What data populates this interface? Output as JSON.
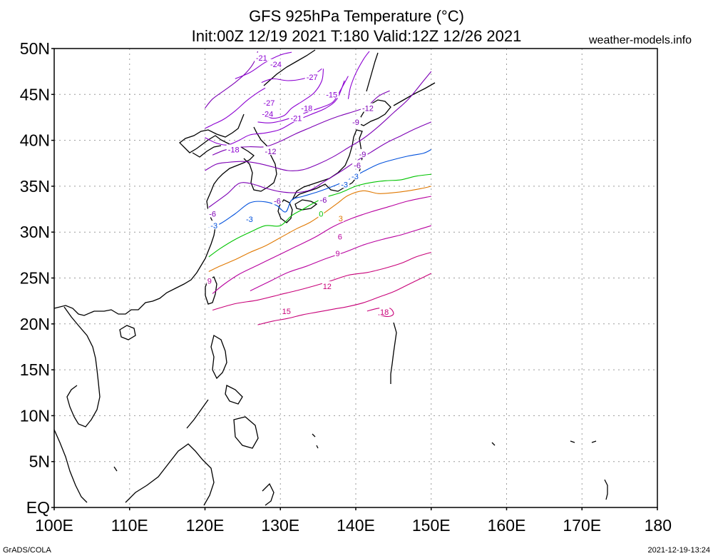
{
  "title": {
    "line1": "GFS 925hPa Temperature (°C)",
    "line2": "Init:00Z 12/19 2021 T:180 Valid:12Z 12/26 2021"
  },
  "site": "weather-models.info",
  "footer": {
    "left": "GrADS/COLA",
    "right": "2021-12-19-13:24"
  },
  "map": {
    "lon_range": [
      100,
      180
    ],
    "lat_range": [
      0,
      50
    ],
    "data_region": {
      "lon": [
        120,
        150
      ],
      "lat": [
        20,
        50
      ]
    },
    "gridlines": "dotted",
    "lat_ticks": [
      {
        "lat": 50,
        "label": "50N"
      },
      {
        "lat": 45,
        "label": "45N"
      },
      {
        "lat": 40,
        "label": "40N"
      },
      {
        "lat": 35,
        "label": "35N"
      },
      {
        "lat": 30,
        "label": "30N"
      },
      {
        "lat": 25,
        "label": "25N"
      },
      {
        "lat": 20,
        "label": "20N"
      },
      {
        "lat": 15,
        "label": "15N"
      },
      {
        "lat": 10,
        "label": "10N"
      },
      {
        "lat": 5,
        "label": "5N"
      },
      {
        "lat": 0,
        "label": "EQ"
      }
    ],
    "lon_ticks": [
      {
        "lon": 100,
        "label": "100E"
      },
      {
        "lon": 110,
        "label": "110E"
      },
      {
        "lon": 120,
        "label": "120E"
      },
      {
        "lon": 130,
        "label": "130E"
      },
      {
        "lon": 140,
        "label": "140E"
      },
      {
        "lon": 150,
        "label": "150E"
      },
      {
        "lon": 160,
        "label": "160E"
      },
      {
        "lon": 170,
        "label": "170E"
      },
      {
        "lon": 180,
        "label": "180"
      }
    ],
    "contours": [
      {
        "value": -27,
        "label": "-27",
        "color": "#8c00d2",
        "points": [
          [
            127.5,
            46.3
          ],
          [
            129,
            46.7
          ],
          [
            131,
            46.5
          ],
          [
            133,
            46.7
          ],
          [
            134.5,
            47.2
          ],
          [
            135.5,
            47.8
          ]
        ]
      },
      {
        "value": -24,
        "label": "-24",
        "color": "#8c00d2",
        "points": [
          [
            127.8,
            42.8
          ],
          [
            129,
            42.4
          ],
          [
            130.5,
            42.7
          ],
          [
            131.5,
            43.5
          ],
          [
            133,
            44.3
          ],
          [
            134.5,
            45.2
          ],
          [
            135.5,
            46.5
          ],
          [
            135.7,
            47.8
          ]
        ]
      },
      {
        "value": -21,
        "label": "-21",
        "color": "#8c00d2",
        "points": [
          [
            124,
            46.7
          ],
          [
            126,
            47.4
          ],
          [
            128,
            48.5
          ],
          [
            130,
            49.3
          ],
          [
            131.5,
            49.6
          ]
        ]
      },
      {
        "value": -21,
        "label": "-21",
        "color": "#8c00d2",
        "points": [
          [
            127,
            42
          ],
          [
            128.5,
            41.9
          ],
          [
            130,
            42.1
          ],
          [
            132,
            42.6
          ],
          [
            134,
            43.2
          ],
          [
            135.5,
            43.6
          ],
          [
            137,
            44.2
          ],
          [
            138,
            45.5
          ],
          [
            139,
            47
          ]
        ]
      },
      {
        "value": -18,
        "label": "-18",
        "color": "#8c00d2",
        "points": [
          [
            120,
            40.3
          ],
          [
            121.5,
            39.7
          ],
          [
            123,
            39.5
          ],
          [
            124.5,
            40
          ],
          [
            126,
            40.6
          ],
          [
            128,
            40.8
          ],
          [
            130,
            41.2
          ],
          [
            132,
            42.1
          ],
          [
            134,
            42.8
          ],
          [
            136,
            43.5
          ],
          [
            137.5,
            44.5
          ],
          [
            138.5,
            46.5
          ]
        ]
      },
      {
        "value": -15,
        "label": "-15",
        "color": "#8c00d2",
        "points": [
          [
            120,
            41.3
          ],
          [
            121,
            41.7
          ],
          [
            122.5,
            42.3
          ],
          [
            124,
            43.2
          ],
          [
            125.5,
            44.3
          ],
          [
            127,
            45.2
          ],
          [
            128,
            45.7
          ]
        ]
      },
      {
        "value": -15,
        "label": "-15",
        "color": "#8c00d2",
        "points": [
          [
            139,
            44.5
          ],
          [
            139.3,
            45.8
          ],
          [
            140,
            47.3
          ],
          [
            141,
            48.8
          ],
          [
            141.8,
            49.7
          ]
        ]
      },
      {
        "value": -12,
        "label": "-12",
        "color": "#7d00b5",
        "points": [
          [
            120,
            43.5
          ],
          [
            121,
            44.5
          ],
          [
            122.5,
            45.4
          ],
          [
            124,
            46.3
          ],
          [
            125.5,
            47.4
          ],
          [
            126.5,
            48.5
          ],
          [
            127,
            49.7
          ]
        ]
      },
      {
        "value": -12,
        "label": "-12",
        "color": "#7d00b5",
        "points": [
          [
            121,
            38.4
          ],
          [
            122.5,
            38.9
          ],
          [
            124,
            39.2
          ],
          [
            126,
            39.3
          ],
          [
            128,
            39.3
          ],
          [
            130,
            39.9
          ],
          [
            132,
            40.7
          ],
          [
            134,
            41.4
          ],
          [
            136,
            42.1
          ],
          [
            138,
            42.7
          ],
          [
            140,
            43.2
          ],
          [
            141.5,
            43.7
          ],
          [
            143,
            44.8
          ],
          [
            144.5,
            45.4
          ]
        ]
      },
      {
        "value": -9,
        "label": "-9",
        "color": "#7d00b5",
        "points": [
          [
            120,
            36.7
          ],
          [
            121.5,
            37.4
          ],
          [
            123,
            37.6
          ],
          [
            125,
            37.7
          ],
          [
            127,
            37.5
          ],
          [
            129,
            37.1
          ],
          [
            131,
            36.7
          ],
          [
            133,
            36.8
          ],
          [
            135,
            37.4
          ],
          [
            137,
            38.2
          ],
          [
            139,
            39.2
          ],
          [
            141,
            40.2
          ],
          [
            143,
            41.5
          ],
          [
            145,
            43
          ],
          [
            147,
            44.5
          ],
          [
            149,
            46.5
          ],
          [
            150,
            47.5
          ]
        ]
      },
      {
        "value": -6,
        "label": "-6",
        "color": "#7d00b5",
        "points": [
          [
            120.5,
            32.7
          ],
          [
            121.5,
            33.3
          ],
          [
            123,
            34.2
          ],
          [
            124.5,
            35.3
          ],
          [
            126,
            35.3
          ],
          [
            128,
            34.8
          ],
          [
            130,
            34.4
          ],
          [
            132,
            34.3
          ],
          [
            134,
            34.6
          ],
          [
            136,
            35.6
          ],
          [
            138,
            36.6
          ],
          [
            140,
            37.7
          ],
          [
            142,
            38.7
          ],
          [
            144,
            39.7
          ],
          [
            146,
            40.5
          ],
          [
            148,
            41.3
          ],
          [
            150,
            42
          ]
        ]
      },
      {
        "value": -3,
        "label": "-3",
        "color": "#0050dc",
        "points": [
          [
            120.5,
            30.5
          ],
          [
            122,
            30.9
          ],
          [
            124,
            32
          ],
          [
            126,
            33.2
          ],
          [
            128,
            33.3
          ],
          [
            129.5,
            32.9
          ],
          [
            130.7,
            32.2
          ],
          [
            131.5,
            33.5
          ],
          [
            133,
            33.9
          ],
          [
            135,
            34.4
          ],
          [
            137,
            35
          ],
          [
            139,
            35.7
          ],
          [
            141,
            36.6
          ],
          [
            143,
            37.4
          ],
          [
            145,
            37.9
          ],
          [
            147,
            38.3
          ],
          [
            149,
            38.6
          ],
          [
            150,
            39
          ]
        ]
      },
      {
        "value": 0,
        "label": "0",
        "color": "#00c400",
        "points": [
          [
            120.5,
            27.3
          ],
          [
            122,
            28.2
          ],
          [
            124,
            29.2
          ],
          [
            126,
            30
          ],
          [
            128,
            30.7
          ],
          [
            130,
            30.7
          ],
          [
            131.5,
            31.8
          ],
          [
            133,
            32.5
          ],
          [
            134.5,
            33.2
          ],
          [
            136,
            33.8
          ],
          [
            138,
            34.3
          ],
          [
            140,
            35
          ],
          [
            142,
            35.4
          ],
          [
            144,
            35.6
          ],
          [
            146,
            35.7
          ],
          [
            148,
            36.1
          ],
          [
            150,
            36.3
          ]
        ]
      },
      {
        "value": 3,
        "label": "3",
        "color": "#e07800",
        "points": [
          [
            120.5,
            25.7
          ],
          [
            122,
            26.3
          ],
          [
            124,
            27
          ],
          [
            126,
            27.8
          ],
          [
            128,
            28.5
          ],
          [
            130,
            29.4
          ],
          [
            132,
            30.3
          ],
          [
            134,
            31.1
          ],
          [
            136,
            32.2
          ],
          [
            137.5,
            33.1
          ],
          [
            139,
            34
          ],
          [
            141,
            34.5
          ],
          [
            143,
            34.2
          ],
          [
            145,
            34.3
          ],
          [
            147,
            34.5
          ],
          [
            149,
            34.8
          ],
          [
            150,
            35
          ]
        ]
      },
      {
        "value": 6,
        "label": "6",
        "color": "#b8009e",
        "points": [
          [
            121,
            23.3
          ],
          [
            122.5,
            24.3
          ],
          [
            124.5,
            25.4
          ],
          [
            127,
            26.4
          ],
          [
            129.5,
            27.4
          ],
          [
            132,
            28.4
          ],
          [
            134.5,
            29.4
          ],
          [
            137,
            30.6
          ],
          [
            139.5,
            31.5
          ],
          [
            142,
            32.2
          ],
          [
            144.5,
            32.8
          ],
          [
            147,
            33.4
          ],
          [
            150,
            33.9
          ]
        ]
      },
      {
        "value": 9,
        "label": "9",
        "color": "#b8009e",
        "points": [
          [
            126,
            23.6
          ],
          [
            128.5,
            24.6
          ],
          [
            131,
            25.6
          ],
          [
            133.5,
            26.3
          ],
          [
            136,
            27.1
          ],
          [
            138.5,
            27.8
          ],
          [
            141,
            28.6
          ],
          [
            143.5,
            29.2
          ],
          [
            146,
            29.7
          ],
          [
            148,
            30.2
          ],
          [
            150,
            30.7
          ]
        ]
      },
      {
        "value": 12,
        "label": "12",
        "color": "#c80078",
        "points": [
          [
            121,
            21.5
          ],
          [
            124,
            22.2
          ],
          [
            127,
            22.6
          ],
          [
            130,
            23.2
          ],
          [
            133,
            23.8
          ],
          [
            136,
            24.5
          ],
          [
            139,
            25.3
          ],
          [
            141.5,
            25.6
          ],
          [
            144,
            26.1
          ],
          [
            146,
            26.6
          ],
          [
            148,
            27.3
          ],
          [
            150,
            27.8
          ]
        ]
      },
      {
        "value": 15,
        "label": "15",
        "color": "#c80078",
        "points": [
          [
            127,
            19.9
          ],
          [
            129,
            20.3
          ],
          [
            131,
            20.6
          ],
          [
            133,
            21
          ],
          [
            135,
            21.3
          ],
          [
            137,
            21.6
          ],
          [
            139,
            21.9
          ],
          [
            141,
            22.3
          ],
          [
            143,
            22.9
          ],
          [
            145,
            23.5
          ],
          [
            147,
            24.3
          ],
          [
            149,
            25.1
          ],
          [
            150,
            25.5
          ]
        ]
      },
      {
        "value": 18,
        "label": "18",
        "color": "#c80078",
        "points": [
          [
            141.5,
            21.4
          ],
          [
            143,
            21.7
          ],
          [
            144.5,
            21.7
          ],
          [
            145,
            21.1
          ],
          [
            144.3,
            20.8
          ],
          [
            143,
            21
          ]
        ]
      }
    ],
    "contour_labels": [
      {
        "text": "-21",
        "lon": 127.5,
        "lat": 49.0,
        "color": "#8c00d2"
      },
      {
        "text": "-24",
        "lon": 129.4,
        "lat": 48.3,
        "color": "#8c00d2"
      },
      {
        "text": "-27",
        "lon": 134.2,
        "lat": 46.9,
        "color": "#8c00d2"
      },
      {
        "text": "-27",
        "lon": 128.5,
        "lat": 44.1,
        "color": "#8c00d2"
      },
      {
        "text": "-24",
        "lon": 128.3,
        "lat": 42.9,
        "color": "#8c00d2"
      },
      {
        "text": "-21",
        "lon": 132.1,
        "lat": 42.4,
        "color": "#8c00d2"
      },
      {
        "text": "-18",
        "lon": 133.5,
        "lat": 43.5,
        "color": "#8c00d2"
      },
      {
        "text": "-15",
        "lon": 136.8,
        "lat": 45.0,
        "color": "#8c00d2"
      },
      {
        "text": "-12",
        "lon": 141.6,
        "lat": 43.5,
        "color": "#7d00b5"
      },
      {
        "text": "-9",
        "lon": 140.0,
        "lat": 42.0,
        "color": "#7d00b5"
      },
      {
        "text": "-18",
        "lon": 123.8,
        "lat": 39.0,
        "color": "#8c00d2"
      },
      {
        "text": "-12",
        "lon": 128.7,
        "lat": 38.8,
        "color": "#7d00b5"
      },
      {
        "text": "-9",
        "lon": 140.9,
        "lat": 38.5,
        "color": "#7d00b5"
      },
      {
        "text": "-6",
        "lon": 140.2,
        "lat": 37.3,
        "color": "#7d00b5"
      },
      {
        "text": "-3",
        "lon": 139.9,
        "lat": 36.1,
        "color": "#0050dc"
      },
      {
        "text": "-3",
        "lon": 138.5,
        "lat": 35.2,
        "color": "#0050dc"
      },
      {
        "text": "-6",
        "lon": 135.7,
        "lat": 33.5,
        "color": "#7d00b5"
      },
      {
        "text": "-6",
        "lon": 129.6,
        "lat": 33.4,
        "color": "#7d00b5"
      },
      {
        "text": "-3",
        "lon": 125.9,
        "lat": 31.4,
        "color": "#0050dc"
      },
      {
        "text": "0",
        "lon": 135.4,
        "lat": 32.0,
        "color": "#00c400"
      },
      {
        "text": "3",
        "lon": 138.0,
        "lat": 31.5,
        "color": "#e07800"
      },
      {
        "text": "6",
        "lon": 137.9,
        "lat": 29.5,
        "color": "#b8009e"
      },
      {
        "text": "9",
        "lon": 137.6,
        "lat": 27.7,
        "color": "#b8009e"
      },
      {
        "text": "9",
        "lon": 120.6,
        "lat": 24.7,
        "color": "#b8009e"
      },
      {
        "text": "12",
        "lon": 136.2,
        "lat": 24.1,
        "color": "#c80078"
      },
      {
        "text": "15",
        "lon": 130.8,
        "lat": 21.4,
        "color": "#c80078"
      },
      {
        "text": "18",
        "lon": 143.8,
        "lat": 21.3,
        "color": "#c80078"
      },
      {
        "text": "-6",
        "lon": 121.0,
        "lat": 32.0,
        "color": "#7d00b5"
      },
      {
        "text": "-3",
        "lon": 121.2,
        "lat": 30.7,
        "color": "#0050dc"
      }
    ]
  }
}
